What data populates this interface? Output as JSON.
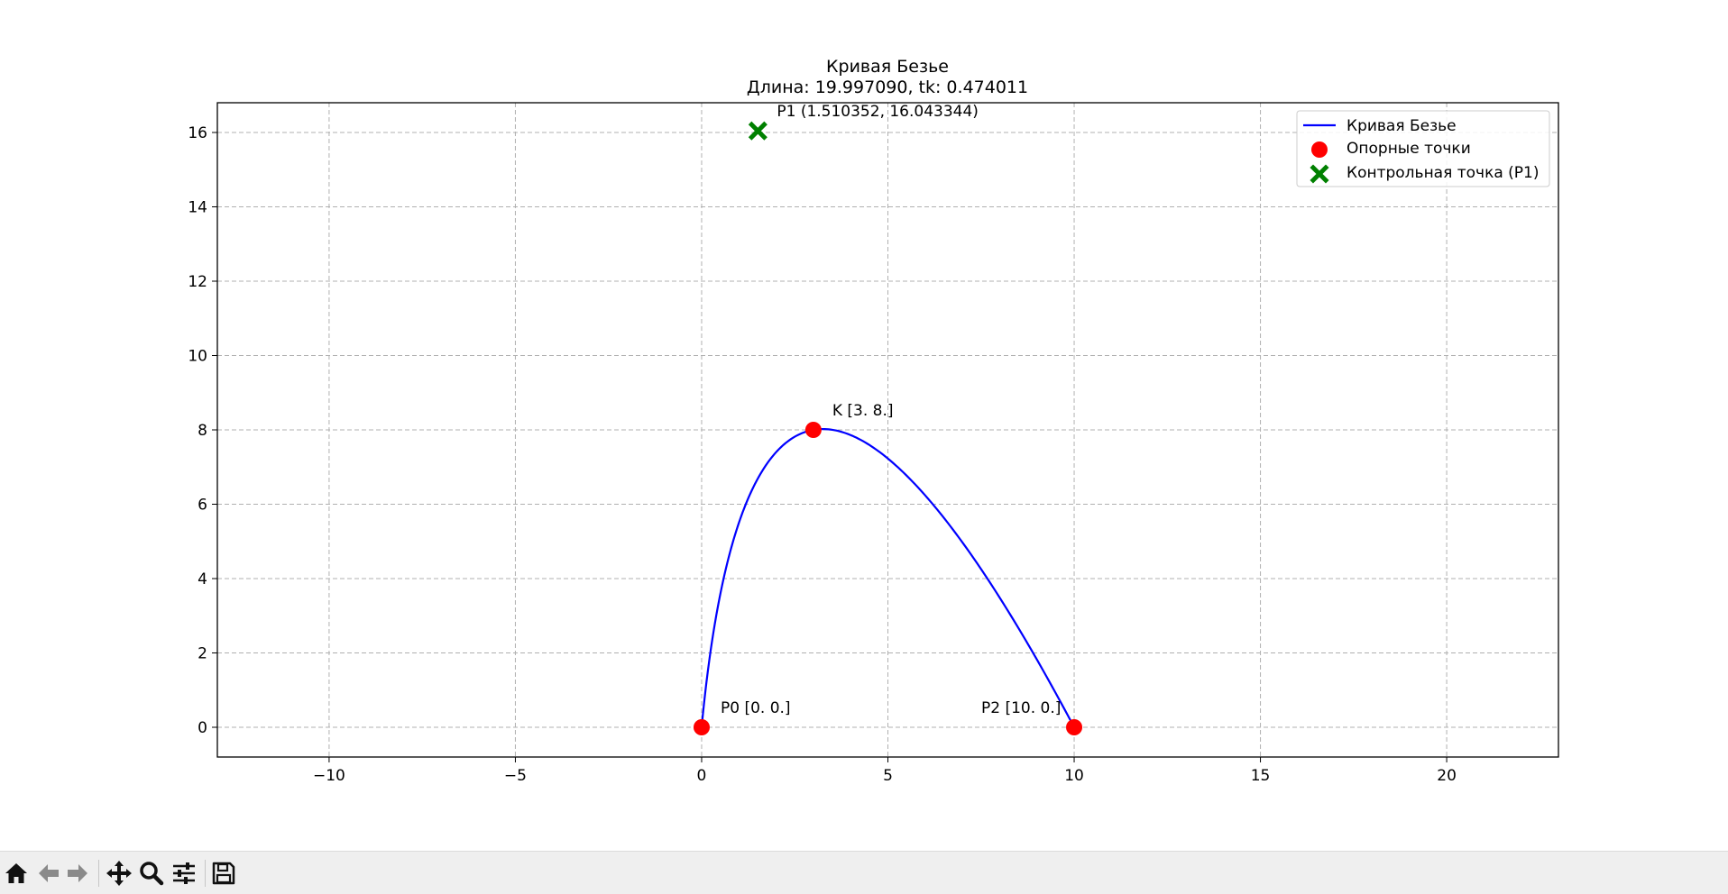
{
  "chart_data": {
    "type": "line",
    "title": "Кривая Безье",
    "subtitle": "Длина: 19.997090, tk: 0.474011",
    "xlabel": "",
    "ylabel": "",
    "xlim": [
      -13,
      23
    ],
    "ylim": [
      -0.8,
      16.8
    ],
    "xticks": [
      -10,
      -5,
      0,
      5,
      10,
      15,
      20
    ],
    "xtick_labels": [
      "−10",
      "−5",
      "0",
      "5",
      "10",
      "15",
      "20"
    ],
    "yticks": [
      0,
      2,
      4,
      6,
      8,
      10,
      12,
      14,
      16
    ],
    "ytick_labels": [
      "0",
      "2",
      "4",
      "6",
      "8",
      "10",
      "12",
      "14",
      "16"
    ],
    "grid": true,
    "legend_position": "upper right",
    "bezier": {
      "P0": [
        0,
        0
      ],
      "P1": [
        1.510352,
        16.043344
      ],
      "P2": [
        10,
        0
      ]
    },
    "series": [
      {
        "name": "Кривая Безье",
        "kind": "line",
        "color": "#0000ff"
      },
      {
        "name": "Опорные точки",
        "kind": "scatter",
        "marker": "circle",
        "color": "#ff0000",
        "points": [
          [
            0,
            0
          ],
          [
            3,
            8
          ],
          [
            10,
            0
          ]
        ]
      },
      {
        "name": "Контрольная точка (P1)",
        "kind": "scatter",
        "marker": "X",
        "color": "#008000",
        "points": [
          [
            1.510352,
            16.043344
          ]
        ]
      }
    ],
    "annotations": [
      {
        "text": "P0 [0. 0.]",
        "x": 0,
        "y": 0
      },
      {
        "text": "K [3. 8.]",
        "x": 3,
        "y": 8
      },
      {
        "text": "P2 [10.  0.]",
        "x": 10,
        "y": 0
      },
      {
        "text": "P1 (1.510352, 16.043344)",
        "x": 1.510352,
        "y": 16.043344
      }
    ]
  },
  "toolbar": {
    "items": [
      {
        "name": "home-button",
        "icon": "home-icon"
      },
      {
        "name": "back-button",
        "icon": "arrow-left-icon"
      },
      {
        "name": "forward-button",
        "icon": "arrow-right-icon"
      },
      {
        "name": "pan-button",
        "icon": "move-icon"
      },
      {
        "name": "zoom-button",
        "icon": "magnifier-icon"
      },
      {
        "name": "configure-subplots-button",
        "icon": "sliders-icon"
      },
      {
        "name": "save-button",
        "icon": "floppy-disk-icon"
      }
    ]
  }
}
